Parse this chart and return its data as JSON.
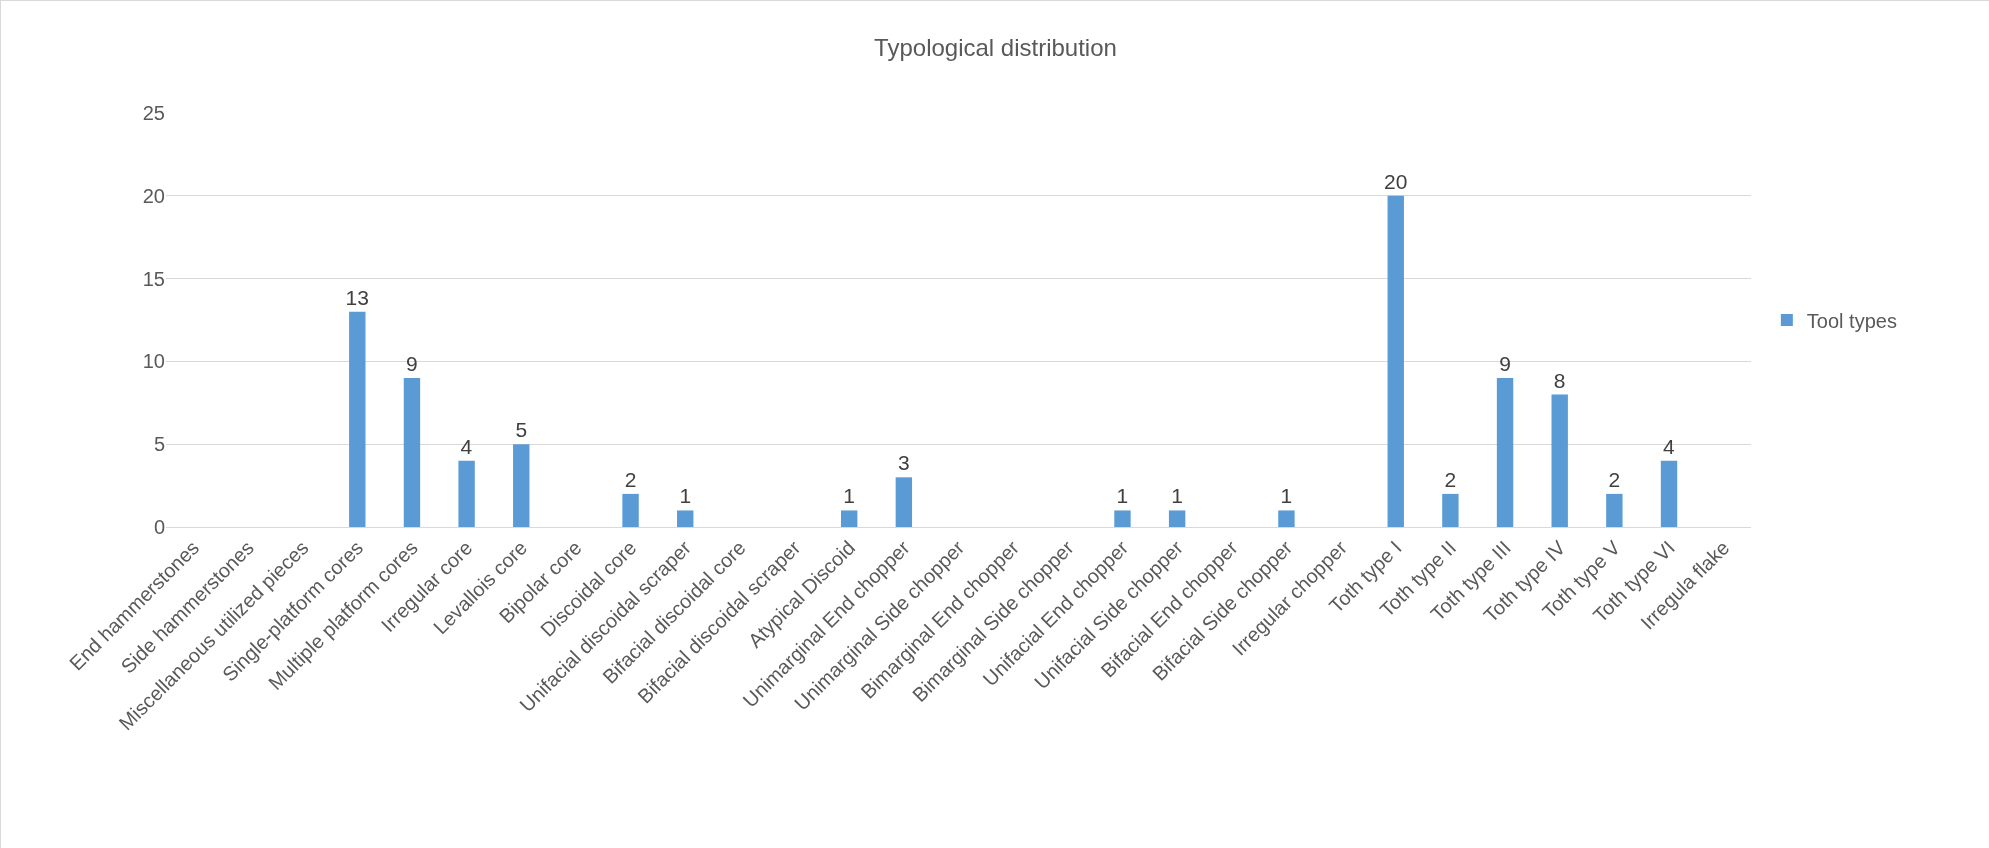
{
  "chart_data": {
    "type": "bar",
    "title": "Typological distribution",
    "categories": [
      "End hammerstones",
      "Side hammerstones",
      "Miscellaneous utilized pieces",
      "Single-platform cores",
      "Multiple platform cores",
      "Irregular core",
      "Levallois core",
      "Bipolar core",
      "Discoidal core",
      "Unifacial discoidal scraper",
      "Bifacial discoidal core",
      "Bifacial discoidal scraper",
      "Atypical Discoid",
      "Unimarginal End chopper",
      "Unimarginal Side chopper",
      "Bimarginal End chopper",
      "Bimarginal Side chopper",
      "Unifacial End chopper",
      "Unifacial Side chopper",
      "Bifacial End chopper",
      "Bifacial Side chopper",
      "Irregular chopper",
      "Toth type I",
      "Toth type II",
      "Toth type III",
      "Toth type IV",
      "Toth type V",
      "Toth type VI",
      "Irregula flake"
    ],
    "series": [
      {
        "name": "Tool types",
        "color": "#5b9bd5",
        "values": [
          0,
          0,
          0,
          13,
          9,
          4,
          5,
          0,
          2,
          1,
          0,
          0,
          1,
          3,
          0,
          0,
          0,
          1,
          1,
          0,
          1,
          0,
          20,
          2,
          9,
          8,
          2,
          4,
          0
        ],
        "value_labels": [
          null,
          null,
          null,
          "13",
          "9",
          "4",
          "5",
          null,
          "2",
          "1",
          null,
          null,
          "1",
          "3",
          null,
          null,
          null,
          "1",
          "1",
          null,
          "1",
          null,
          "20",
          "2",
          "9",
          "8",
          "2",
          "4",
          null
        ]
      }
    ],
    "ylim": [
      0,
      25
    ],
    "yticks": [
      0,
      5,
      10,
      15,
      20,
      25
    ],
    "grid": "y",
    "legend": "right"
  }
}
